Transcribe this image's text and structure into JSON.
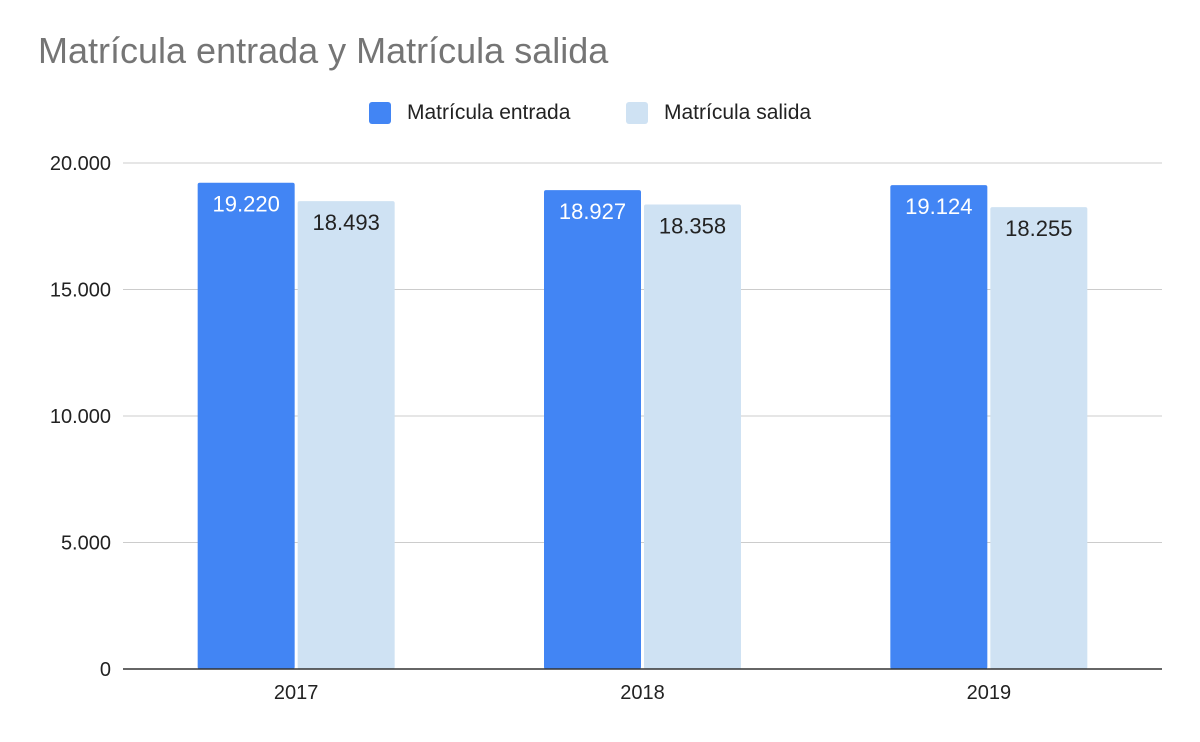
{
  "chart_data": {
    "type": "bar",
    "title": "Matrícula entrada y Matrícula salida",
    "categories": [
      "2017",
      "2018",
      "2019"
    ],
    "series": [
      {
        "name": "Matrícula entrada",
        "values": [
          19220,
          18927,
          19124
        ],
        "labels": [
          "19.220",
          "18.927",
          "19.124"
        ],
        "color": "#4285f4",
        "label_color": "#ffffff"
      },
      {
        "name": "Matrícula salida",
        "values": [
          18493,
          18358,
          18255
        ],
        "labels": [
          "18.493",
          "18.358",
          "18.255"
        ],
        "color": "#cfe2f3",
        "label_color": "#222222"
      }
    ],
    "ylim": [
      0,
      20000
    ],
    "yticks": [
      0,
      5000,
      10000,
      15000,
      20000
    ],
    "ytick_labels": [
      "0",
      "5.000",
      "10.000",
      "15.000",
      "20.000"
    ],
    "xlabel": "",
    "ylabel": "",
    "grid": true,
    "legend_position": "top",
    "gridline_color": "#cccccc",
    "axis_color": "#333333"
  }
}
